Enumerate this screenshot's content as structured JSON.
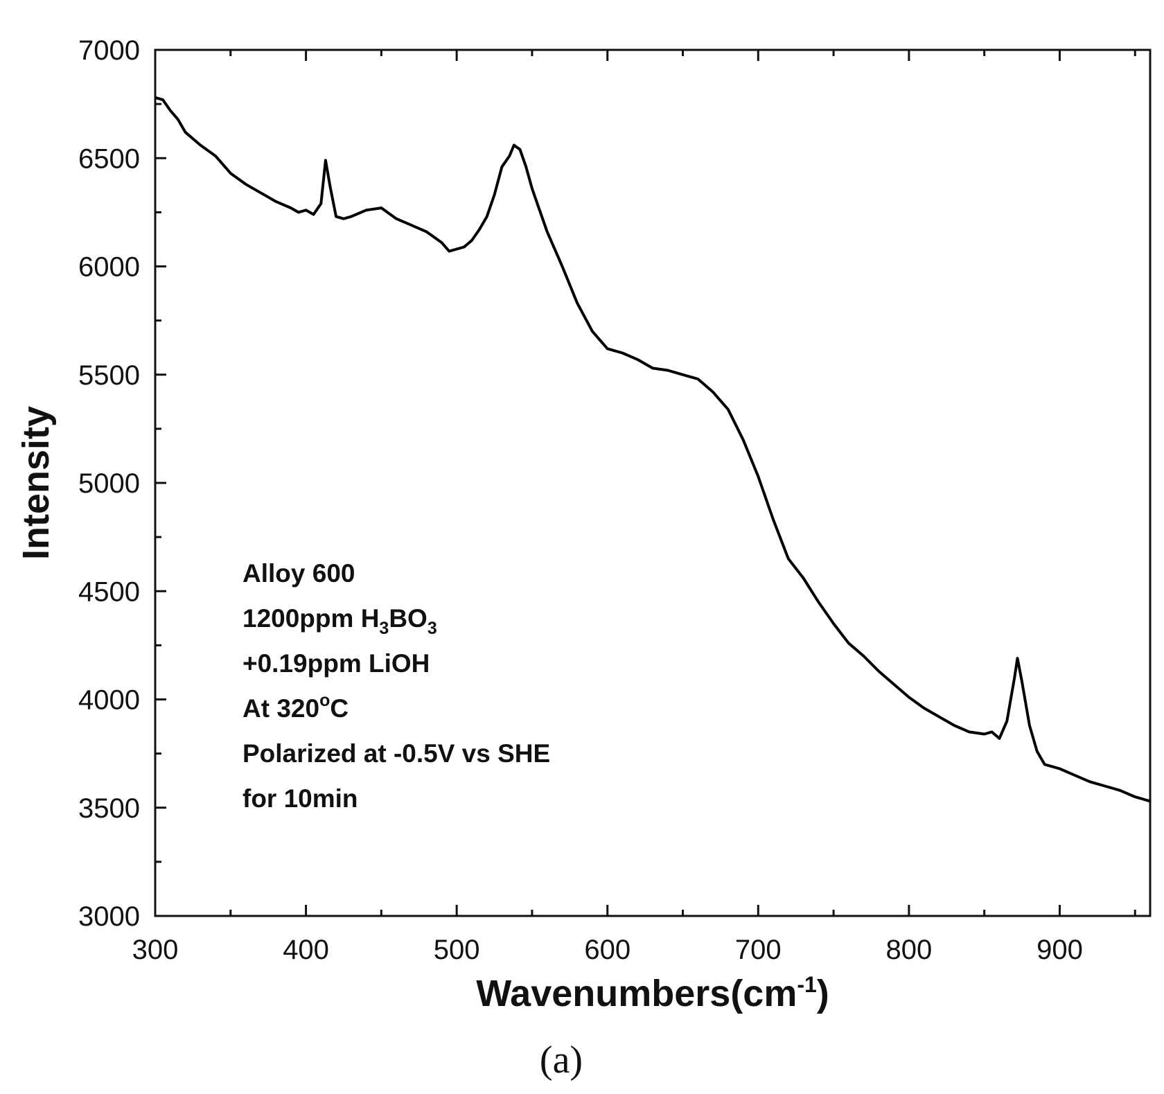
{
  "chart_data": {
    "type": "line",
    "xlabel": "Wavenumbers(cm",
    "xlabel_superscript": "-1",
    "xlabel_close": ")",
    "ylabel": "Intensity",
    "xlim": [
      300,
      960
    ],
    "ylim": [
      3000,
      7000
    ],
    "xticks": [
      300,
      400,
      500,
      600,
      700,
      800,
      900
    ],
    "yticks": [
      3000,
      3500,
      4000,
      4500,
      5000,
      5500,
      6000,
      6500,
      7000
    ],
    "grid": false,
    "line_color": "#000000",
    "annotation": {
      "line1": "Alloy 600",
      "line2_a": "1200ppm H",
      "line2_sub1": "3",
      "line2_b": "BO",
      "line2_sub2": "3",
      "line3": "+0.19ppm LiOH",
      "line4_a": "At 320",
      "line4_sup": "o",
      "line4_b": "C",
      "line5": "Polarized at -0.5V vs SHE",
      "line6": "for 10min"
    },
    "series": [
      {
        "x": [
          300,
          305,
          310,
          315,
          320,
          330,
          340,
          350,
          360,
          370,
          380,
          390,
          395,
          400,
          405,
          410,
          413,
          416,
          420,
          425,
          430,
          440,
          450,
          460,
          470,
          480,
          490,
          495,
          500,
          505,
          510,
          515,
          520,
          525,
          530,
          535,
          538,
          542,
          546,
          550,
          555,
          560,
          570,
          580,
          590,
          600,
          610,
          620,
          630,
          640,
          650,
          660,
          670,
          680,
          690,
          700,
          710,
          720,
          730,
          740,
          750,
          760,
          770,
          780,
          790,
          800,
          810,
          820,
          830,
          840,
          850,
          855,
          860,
          865,
          870,
          872,
          875,
          880,
          885,
          890,
          900,
          910,
          920,
          930,
          940,
          950,
          960
        ],
        "y": [
          6780,
          6770,
          6720,
          6680,
          6620,
          6560,
          6510,
          6430,
          6380,
          6340,
          6300,
          6270,
          6250,
          6260,
          6240,
          6290,
          6490,
          6370,
          6230,
          6220,
          6230,
          6260,
          6270,
          6220,
          6190,
          6160,
          6110,
          6070,
          6080,
          6090,
          6120,
          6170,
          6230,
          6330,
          6460,
          6510,
          6560,
          6540,
          6460,
          6360,
          6260,
          6160,
          6000,
          5830,
          5700,
          5620,
          5600,
          5570,
          5530,
          5520,
          5500,
          5480,
          5420,
          5340,
          5200,
          5030,
          4830,
          4650,
          4560,
          4450,
          4350,
          4260,
          4200,
          4130,
          4070,
          4010,
          3960,
          3920,
          3880,
          3850,
          3840,
          3850,
          3820,
          3900,
          4100,
          4190,
          4080,
          3880,
          3760,
          3700,
          3680,
          3650,
          3620,
          3600,
          3580,
          3550,
          3530
        ]
      }
    ]
  },
  "panel_label": "(a)"
}
